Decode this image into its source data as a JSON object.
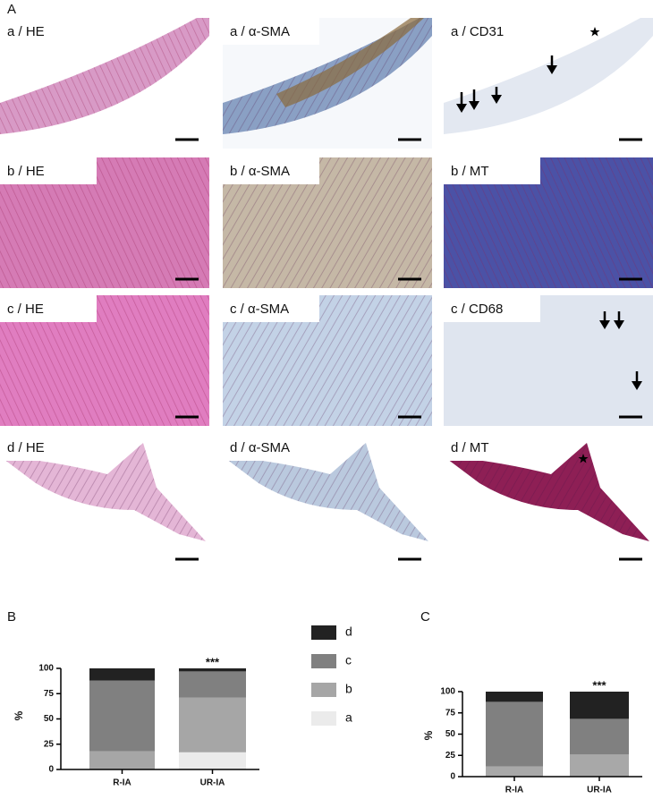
{
  "panel_a": {
    "label": "A",
    "tiles": [
      "a / HE",
      "a / α-SMA",
      "a / CD31",
      "b / HE",
      "b / α-SMA",
      "b / MT",
      "c / HE",
      "c / α-SMA",
      "c / CD68",
      "d / HE",
      "d / α-SMA",
      "d / MT"
    ]
  },
  "chart_data": [
    {
      "type": "bar",
      "stacked": true,
      "panel_label": "B",
      "ylabel": "%",
      "categories": [
        "R-IA",
        "UR-IA"
      ],
      "series": [
        {
          "name": "a",
          "color": "#ebebeb",
          "values": [
            0,
            17
          ]
        },
        {
          "name": "b",
          "color": "#a6a6a6",
          "values": [
            18,
            54
          ]
        },
        {
          "name": "c",
          "color": "#808080",
          "values": [
            70,
            26
          ]
        },
        {
          "name": "d",
          "color": "#222222",
          "values": [
            12,
            3
          ]
        }
      ],
      "annotations": [
        {
          "category": 1,
          "text": "***"
        }
      ],
      "ylim": [
        0,
        100
      ],
      "yticks": [
        0,
        25,
        50,
        75,
        100
      ],
      "legend": "right"
    },
    {
      "type": "bar",
      "stacked": true,
      "panel_label": "C",
      "ylabel": "%",
      "categories": [
        "R-IA",
        "UR-IA"
      ],
      "series": [
        {
          "color": "#a8a8a8",
          "values": [
            12,
            26
          ]
        },
        {
          "color": "#808080",
          "values": [
            76,
            42
          ]
        },
        {
          "color": "#222222",
          "values": [
            12,
            32
          ]
        }
      ],
      "annotations": [
        {
          "category": 1,
          "text": "***"
        }
      ],
      "ylim": [
        0,
        100
      ],
      "yticks": [
        0,
        25,
        50,
        75,
        100
      ]
    }
  ]
}
